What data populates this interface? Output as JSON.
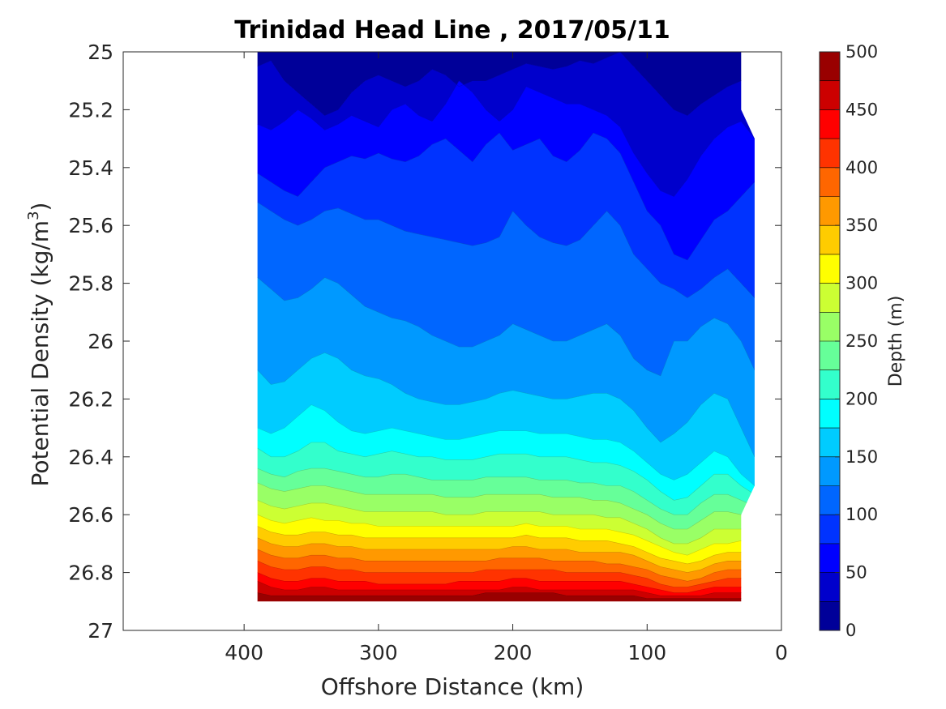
{
  "chart_data": {
    "type": "contourf",
    "title": "Trinidad Head Line , 2017/05/11",
    "xlabel": "Offshore Distance (km)",
    "ylabel_main": "Potential Density (kg/m",
    "ylabel_sup": "3",
    "ylabel_close": ")",
    "xlim": [
      490,
      0
    ],
    "x_reversed": true,
    "x_ticks": [
      "400",
      "300",
      "200",
      "100",
      "0"
    ],
    "ylim": [
      25,
      27
    ],
    "y_reversed": true,
    "y_ticks": [
      "25",
      "25.2",
      "25.4",
      "25.6",
      "25.8",
      "26",
      "26.2",
      "26.4",
      "26.6",
      "26.8",
      "27"
    ],
    "colorbar": {
      "label": "Depth (m)",
      "range": [
        0,
        500
      ],
      "step": 25,
      "ticks": [
        "0",
        "50",
        "100",
        "150",
        "200",
        "250",
        "300",
        "350",
        "400",
        "450",
        "500"
      ],
      "colormap": "jet"
    },
    "data_extent": {
      "x_min": 20,
      "x_max": 390,
      "y_top": 25,
      "y_bottom": 26.9
    },
    "stations_km": [
      390,
      380,
      370,
      360,
      350,
      340,
      330,
      320,
      310,
      300,
      290,
      280,
      270,
      260,
      250,
      240,
      230,
      220,
      210,
      200,
      190,
      180,
      170,
      160,
      150,
      140,
      130,
      120,
      110,
      100,
      90,
      80,
      70,
      60,
      50,
      40,
      30,
      20
    ],
    "contour_levels": [
      {
        "depth": 25,
        "density": [
          25.05,
          25.03,
          25.1,
          25.14,
          25.18,
          25.22,
          25.2,
          25.14,
          25.1,
          25.08,
          25.1,
          25.12,
          25.1,
          25.06,
          25.08,
          25.12,
          25.1,
          25.1,
          25.08,
          25.06,
          25.04,
          25.05,
          25.06,
          25.05,
          25.03,
          25.04,
          25.02,
          25.0,
          25.05,
          25.1,
          25.15,
          25.2,
          25.22,
          25.18,
          25.15,
          25.12,
          25.1,
          25.08
        ]
      },
      {
        "depth": 50,
        "density": [
          25.25,
          25.27,
          25.24,
          25.2,
          25.23,
          25.27,
          25.25,
          25.22,
          25.24,
          25.26,
          25.2,
          25.18,
          25.22,
          25.24,
          25.18,
          25.1,
          25.14,
          25.2,
          25.24,
          25.2,
          25.12,
          25.14,
          25.16,
          25.18,
          25.18,
          25.2,
          25.22,
          25.26,
          25.35,
          25.42,
          25.48,
          25.5,
          25.44,
          25.36,
          25.3,
          25.26,
          25.24,
          25.3
        ]
      },
      {
        "depth": 75,
        "density": [
          25.42,
          25.45,
          25.48,
          25.5,
          25.45,
          25.4,
          25.38,
          25.36,
          25.37,
          25.35,
          25.37,
          25.38,
          25.36,
          25.32,
          25.3,
          25.34,
          25.38,
          25.32,
          25.28,
          25.34,
          25.32,
          25.3,
          25.36,
          25.38,
          25.34,
          25.28,
          25.3,
          25.35,
          25.45,
          25.55,
          25.6,
          25.7,
          25.72,
          25.65,
          25.58,
          25.55,
          25.5,
          25.45
        ]
      },
      {
        "depth": 100,
        "density": [
          25.52,
          25.55,
          25.58,
          25.6,
          25.58,
          25.55,
          25.54,
          25.56,
          25.58,
          25.58,
          25.6,
          25.62,
          25.63,
          25.64,
          25.65,
          25.66,
          25.67,
          25.66,
          25.64,
          25.55,
          25.6,
          25.64,
          25.66,
          25.67,
          25.65,
          25.6,
          25.55,
          25.6,
          25.7,
          25.75,
          25.8,
          25.82,
          25.85,
          25.82,
          25.78,
          25.75,
          25.8,
          25.85
        ]
      },
      {
        "depth": 125,
        "density": [
          25.78,
          25.82,
          25.86,
          25.85,
          25.82,
          25.78,
          25.8,
          25.84,
          25.88,
          25.9,
          25.92,
          25.93,
          25.95,
          25.98,
          26.0,
          26.02,
          26.02,
          26.0,
          25.98,
          25.94,
          25.96,
          25.98,
          26.0,
          26.0,
          25.98,
          25.96,
          25.94,
          25.98,
          26.06,
          26.1,
          26.12,
          26.0,
          26.0,
          25.95,
          25.92,
          25.94,
          26.0,
          26.1
        ]
      },
      {
        "depth": 150,
        "density": [
          26.1,
          26.15,
          26.14,
          26.1,
          26.06,
          26.04,
          26.06,
          26.1,
          26.12,
          26.13,
          26.15,
          26.18,
          26.2,
          26.21,
          26.22,
          26.22,
          26.21,
          26.2,
          26.18,
          26.17,
          26.18,
          26.19,
          26.2,
          26.2,
          26.19,
          26.18,
          26.18,
          26.2,
          26.24,
          26.3,
          26.35,
          26.32,
          26.28,
          26.22,
          26.18,
          26.2,
          26.3,
          26.4
        ]
      },
      {
        "depth": 175,
        "density": [
          26.3,
          26.32,
          26.3,
          26.26,
          26.22,
          26.24,
          26.28,
          26.31,
          26.32,
          26.31,
          26.3,
          26.31,
          26.32,
          26.33,
          26.34,
          26.34,
          26.33,
          26.32,
          26.31,
          26.31,
          26.31,
          26.32,
          26.32,
          26.32,
          26.33,
          26.34,
          26.34,
          26.35,
          26.38,
          26.42,
          26.46,
          26.48,
          26.46,
          26.42,
          26.38,
          26.4,
          26.46,
          26.5
        ]
      },
      {
        "depth": 200,
        "density": [
          26.37,
          26.4,
          26.4,
          26.38,
          26.35,
          26.35,
          26.38,
          26.39,
          26.4,
          26.39,
          26.38,
          26.39,
          26.4,
          26.4,
          26.41,
          26.41,
          26.41,
          26.4,
          26.39,
          26.39,
          26.39,
          26.4,
          26.4,
          26.4,
          26.41,
          26.42,
          26.42,
          26.43,
          26.45,
          26.48,
          26.52,
          26.55,
          26.54,
          26.5,
          26.46,
          26.46,
          26.5,
          26.53
        ]
      },
      {
        "depth": 225,
        "density": [
          26.44,
          26.46,
          26.47,
          26.45,
          26.44,
          26.44,
          26.45,
          26.46,
          26.47,
          26.47,
          26.46,
          26.46,
          26.47,
          26.48,
          26.48,
          26.48,
          26.48,
          26.47,
          26.47,
          26.47,
          26.47,
          26.48,
          26.48,
          26.48,
          26.49,
          26.49,
          26.5,
          26.5,
          26.52,
          26.55,
          26.58,
          26.6,
          26.6,
          26.56,
          26.53,
          26.53,
          26.55,
          26.57
        ]
      },
      {
        "depth": 250,
        "density": [
          26.49,
          26.51,
          26.52,
          26.51,
          26.5,
          26.5,
          26.51,
          26.52,
          26.53,
          26.53,
          26.53,
          26.53,
          26.53,
          26.53,
          26.54,
          26.54,
          26.54,
          26.53,
          26.53,
          26.53,
          26.53,
          26.53,
          26.54,
          26.54,
          26.54,
          26.55,
          26.55,
          26.56,
          26.58,
          26.6,
          26.63,
          26.65,
          26.65,
          26.62,
          26.59,
          26.59,
          26.6,
          26.6
        ]
      },
      {
        "depth": 275,
        "density": [
          26.55,
          26.57,
          26.58,
          26.57,
          26.56,
          26.56,
          26.57,
          26.58,
          26.59,
          26.59,
          26.59,
          26.59,
          26.59,
          26.59,
          26.6,
          26.6,
          26.6,
          26.59,
          26.59,
          26.59,
          26.59,
          26.59,
          26.6,
          26.6,
          26.6,
          26.6,
          26.61,
          26.61,
          26.63,
          26.65,
          26.68,
          26.7,
          26.7,
          26.68,
          26.65,
          26.65,
          26.65,
          26.65
        ]
      },
      {
        "depth": 300,
        "density": [
          26.6,
          26.62,
          26.63,
          26.62,
          26.61,
          26.62,
          26.62,
          26.63,
          26.63,
          26.64,
          26.64,
          26.64,
          26.64,
          26.64,
          26.64,
          26.64,
          26.64,
          26.64,
          26.64,
          26.64,
          26.63,
          26.64,
          26.64,
          26.64,
          26.65,
          26.65,
          26.65,
          26.66,
          26.67,
          26.69,
          26.71,
          26.73,
          26.74,
          26.72,
          26.7,
          26.7,
          26.69,
          26.69
        ]
      },
      {
        "depth": 325,
        "density": [
          26.64,
          26.66,
          26.67,
          26.67,
          26.66,
          26.66,
          26.67,
          26.67,
          26.68,
          26.68,
          26.68,
          26.68,
          26.68,
          26.68,
          26.68,
          26.68,
          26.68,
          26.68,
          26.68,
          26.68,
          26.67,
          26.68,
          26.68,
          26.68,
          26.69,
          26.69,
          26.69,
          26.7,
          26.71,
          26.73,
          26.75,
          26.76,
          26.77,
          26.76,
          26.74,
          26.73,
          26.73,
          26.73
        ]
      },
      {
        "depth": 350,
        "density": [
          26.68,
          26.7,
          26.71,
          26.71,
          26.7,
          26.7,
          26.71,
          26.71,
          26.72,
          26.72,
          26.72,
          26.72,
          26.72,
          26.72,
          26.72,
          26.72,
          26.72,
          26.72,
          26.72,
          26.71,
          26.71,
          26.72,
          26.72,
          26.72,
          26.73,
          26.73,
          26.73,
          26.73,
          26.74,
          26.76,
          26.78,
          26.79,
          26.8,
          26.79,
          26.77,
          26.76,
          26.76,
          26.76
        ]
      },
      {
        "depth": 375,
        "density": [
          26.72,
          26.74,
          26.75,
          26.75,
          26.74,
          26.74,
          26.75,
          26.75,
          26.76,
          26.76,
          26.76,
          26.76,
          26.76,
          26.76,
          26.76,
          26.76,
          26.76,
          26.76,
          26.75,
          26.75,
          26.75,
          26.75,
          26.76,
          26.76,
          26.76,
          26.76,
          26.77,
          26.77,
          26.78,
          26.79,
          26.81,
          26.82,
          26.83,
          26.82,
          26.8,
          26.79,
          26.79,
          26.79
        ]
      },
      {
        "depth": 400,
        "density": [
          26.76,
          26.78,
          26.79,
          26.79,
          26.78,
          26.78,
          26.79,
          26.79,
          26.8,
          26.8,
          26.8,
          26.8,
          26.8,
          26.8,
          26.8,
          26.8,
          26.8,
          26.79,
          26.79,
          26.79,
          26.79,
          26.79,
          26.79,
          26.8,
          26.8,
          26.8,
          26.8,
          26.8,
          26.81,
          26.82,
          26.84,
          26.85,
          26.85,
          26.84,
          26.83,
          26.82,
          26.82,
          26.82
        ]
      },
      {
        "depth": 425,
        "density": [
          26.8,
          26.82,
          26.83,
          26.83,
          26.82,
          26.82,
          26.83,
          26.83,
          26.83,
          26.84,
          26.84,
          26.84,
          26.84,
          26.84,
          26.84,
          26.83,
          26.83,
          26.83,
          26.83,
          26.82,
          26.82,
          26.83,
          26.83,
          26.83,
          26.83,
          26.83,
          26.83,
          26.83,
          26.84,
          26.85,
          26.86,
          26.87,
          26.87,
          26.86,
          26.85,
          26.85,
          26.85,
          26.85
        ]
      },
      {
        "depth": 450,
        "density": [
          26.83,
          26.85,
          26.86,
          26.86,
          26.85,
          26.85,
          26.86,
          26.86,
          26.86,
          26.86,
          26.86,
          26.86,
          26.86,
          26.86,
          26.86,
          26.86,
          26.86,
          26.86,
          26.86,
          26.85,
          26.85,
          26.86,
          26.86,
          26.86,
          26.86,
          26.86,
          26.86,
          26.86,
          26.86,
          26.87,
          26.88,
          26.88,
          26.88,
          26.88,
          26.87,
          26.87,
          26.87,
          26.87
        ]
      },
      {
        "depth": 475,
        "density": [
          26.87,
          26.88,
          26.88,
          26.88,
          26.88,
          26.88,
          26.88,
          26.88,
          26.88,
          26.88,
          26.88,
          26.88,
          26.88,
          26.88,
          26.88,
          26.88,
          26.88,
          26.87,
          26.87,
          26.87,
          26.87,
          26.87,
          26.87,
          26.88,
          26.88,
          26.88,
          26.88,
          26.88,
          26.88,
          26.89,
          26.89,
          26.89,
          26.89,
          26.89,
          26.89,
          26.89,
          26.89,
          26.89
        ]
      }
    ]
  }
}
